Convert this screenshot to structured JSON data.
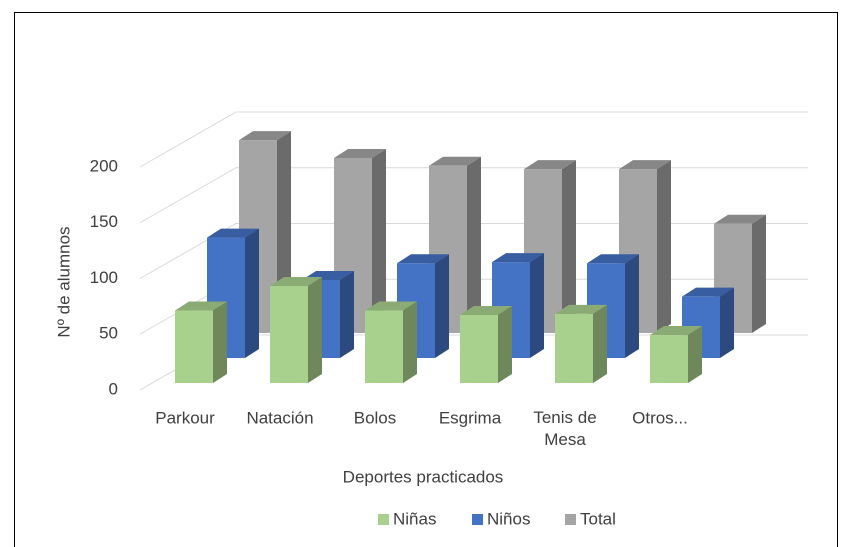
{
  "chart_data": {
    "type": "bar3d",
    "x_label": "Deportes practicados",
    "y_label": "Nº de alumnos",
    "categories": [
      "Parkour",
      "Natación",
      "Bolos",
      "Esgrima",
      "Tenis de Mesa",
      "Otros..."
    ],
    "series": [
      {
        "name": "Niñas",
        "color": "#a9d18e",
        "values": [
          65,
          87,
          65,
          61,
          62,
          43
        ]
      },
      {
        "name": "Niños",
        "color": "#4472c4",
        "values": [
          108,
          70,
          85,
          86,
          85,
          55
        ]
      },
      {
        "name": "Total",
        "color": "#a5a5a5",
        "values": [
          173,
          157,
          150,
          147,
          147,
          98
        ]
      }
    ],
    "ylim": [
      0,
      200
    ],
    "yticks": [
      0,
      50,
      100,
      150,
      200
    ],
    "grid": true,
    "legend": "bottom"
  }
}
